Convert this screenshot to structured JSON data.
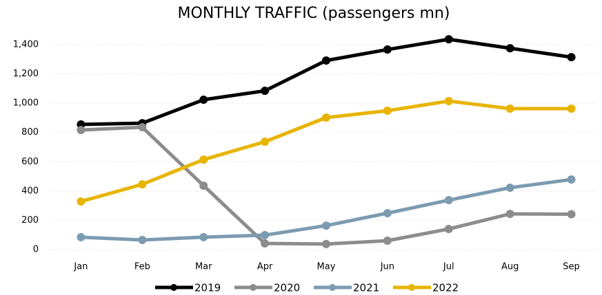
{
  "chart_data": {
    "type": "line",
    "title": "MONTHLY TRAFFIC (passengers mn)",
    "categories": [
      "Jan",
      "Feb",
      "Mar",
      "Apr",
      "May",
      "Jun",
      "Jul",
      "Aug",
      "Sep"
    ],
    "series": [
      {
        "name": "2019",
        "color": "#000000",
        "values": [
          855,
          864,
          1024,
          1085,
          1292,
          1367,
          1437,
          1376,
          1315
        ]
      },
      {
        "name": "2020",
        "color": "#8c8c8c",
        "values": [
          817,
          836,
          437,
          42,
          38,
          61,
          141,
          244,
          242
        ]
      },
      {
        "name": "2021",
        "color": "#7b9bb0",
        "values": [
          85,
          66,
          85,
          99,
          164,
          249,
          338,
          423,
          479
        ]
      },
      {
        "name": "2022",
        "color": "#e8b400",
        "values": [
          329,
          446,
          615,
          737,
          902,
          949,
          1015,
          963,
          963
        ]
      }
    ],
    "ylim": [
      0,
      1400
    ],
    "yticks": [
      0,
      200,
      400,
      600,
      800,
      {
        "value": 1000,
        "label": "1,000"
      },
      {
        "value": 1200,
        "label": "1,200"
      },
      {
        "value": 1400,
        "label": "1,400"
      }
    ],
    "grid": true,
    "legend": "bottom"
  }
}
